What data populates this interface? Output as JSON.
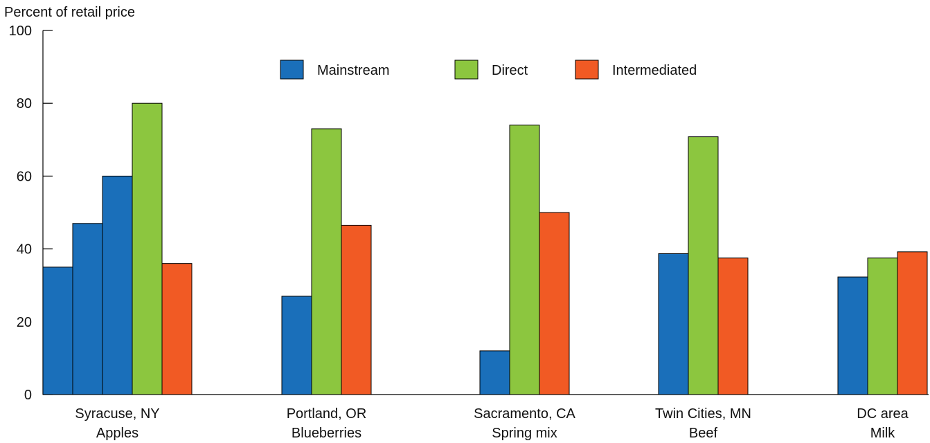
{
  "chart_data": {
    "type": "bar",
    "ylabel": "Percent of retail price",
    "ylim": [
      0,
      100
    ],
    "yticks": [
      0,
      20,
      40,
      60,
      80,
      100
    ],
    "grid": false,
    "legend": {
      "placement": "top-center",
      "entries": [
        {
          "name": "Mainstream",
          "color": "#1a6fba"
        },
        {
          "name": "Direct",
          "color": "#8cc63f"
        },
        {
          "name": "Intermediated",
          "color": "#f15a24"
        }
      ]
    },
    "groups": [
      {
        "label_line1": "Syracuse, NY",
        "label_line2": "Apples",
        "bars": [
          {
            "series": "Mainstream",
            "value": 35
          },
          {
            "series": "Mainstream",
            "value": 47
          },
          {
            "series": "Mainstream",
            "value": 60
          },
          {
            "series": "Direct",
            "value": 80
          },
          {
            "series": "Intermediated",
            "value": 36
          }
        ]
      },
      {
        "label_line1": "Portland, OR",
        "label_line2": "Blueberries",
        "bars": [
          {
            "series": "Mainstream",
            "value": 27
          },
          {
            "series": "Direct",
            "value": 73
          },
          {
            "series": "Intermediated",
            "value": 46.5
          }
        ]
      },
      {
        "label_line1": "Sacramento, CA",
        "label_line2": "Spring mix",
        "bars": [
          {
            "series": "Mainstream",
            "value": 12
          },
          {
            "series": "Direct",
            "value": 74
          },
          {
            "series": "Intermediated",
            "value": 50
          }
        ]
      },
      {
        "label_line1": "Twin Cities, MN",
        "label_line2": "Beef",
        "bars": [
          {
            "series": "Mainstream",
            "value": 38.7
          },
          {
            "series": "Direct",
            "value": 70.8
          },
          {
            "series": "Intermediated",
            "value": 37.5
          }
        ]
      },
      {
        "label_line1": "DC area",
        "label_line2": "Milk",
        "bars": [
          {
            "series": "Mainstream",
            "value": 32.3
          },
          {
            "series": "Direct",
            "value": 37.5
          },
          {
            "series": "Intermediated",
            "value": 39.2
          }
        ]
      }
    ]
  }
}
